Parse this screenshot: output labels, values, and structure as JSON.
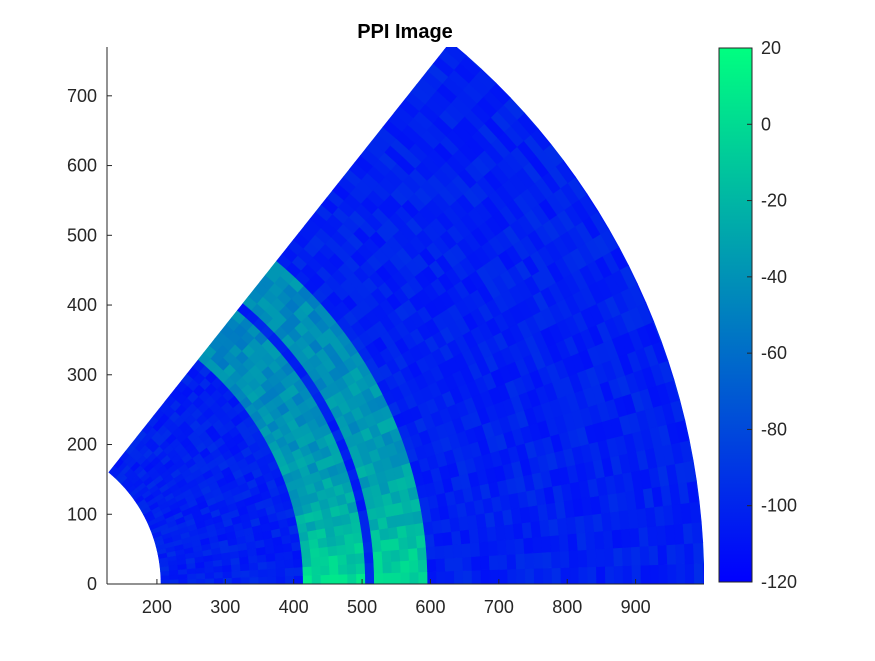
{
  "chart_data": {
    "type": "heatmap",
    "subtype": "ppi-sector",
    "title": "PPI Image",
    "xlabel": "",
    "ylabel": "",
    "xlim": [
      127,
      1000
    ],
    "ylim": [
      0,
      770
    ],
    "xticks": [
      200,
      300,
      400,
      500,
      600,
      700,
      800,
      900
    ],
    "yticks": [
      0,
      100,
      200,
      300,
      400,
      500,
      600,
      700
    ],
    "sector": {
      "r_min": 206,
      "r_max": 1000,
      "theta_min_deg": 0,
      "theta_max_deg": 51
    },
    "colorbar": {
      "min": -120,
      "max": 20,
      "ticks": [
        20,
        0,
        -20,
        -40,
        -60,
        -80,
        -100,
        -120
      ],
      "colormap": "winter",
      "color_low": "#0000ff",
      "color_high": "#00ff80"
    },
    "background_level": -103,
    "rings": [
      {
        "r_inner": 420,
        "r_outer": 505,
        "peak": 5,
        "edge": -45,
        "decay_deg": 14
      },
      {
        "r_inner": 522,
        "r_outer": 602,
        "peak": 3,
        "edge": -45,
        "decay_deg": 14
      }
    ],
    "grid": false
  }
}
